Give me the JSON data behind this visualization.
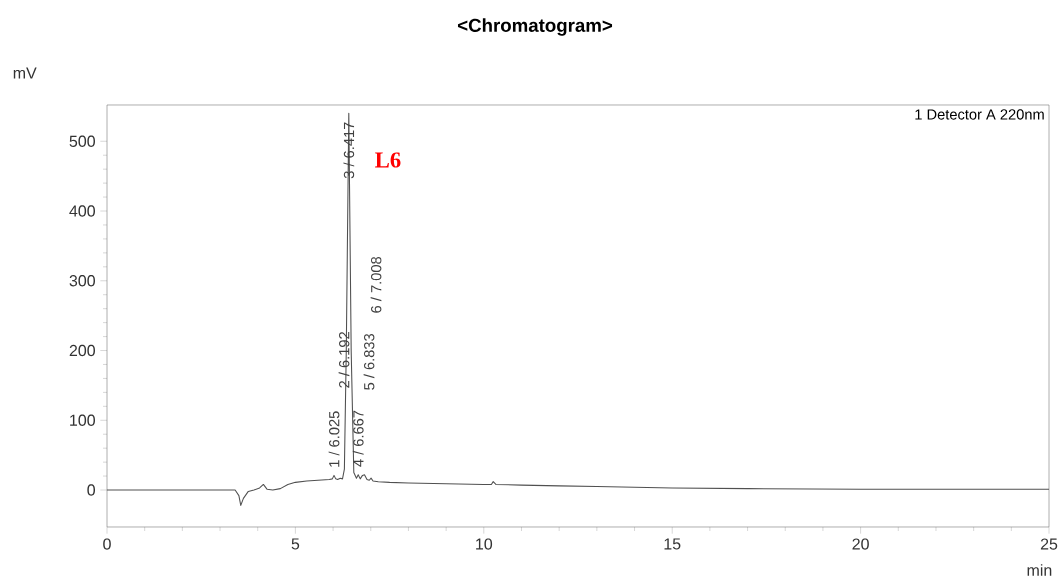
{
  "chart_data": {
    "type": "line",
    "title": "<Chromatogram>",
    "xlabel": "min",
    "ylabel": "mV",
    "x": [
      0,
      1,
      2,
      3,
      3.4,
      3.5,
      3.55,
      3.62,
      3.75,
      3.9,
      4.05,
      4.15,
      4.25,
      4.4,
      4.6,
      4.8,
      5.0,
      5.3,
      5.6,
      5.9,
      5.98,
      6.025,
      6.07,
      6.12,
      6.192,
      6.25,
      6.3,
      6.35,
      6.417,
      6.48,
      6.55,
      6.62,
      6.667,
      6.72,
      6.78,
      6.833,
      6.9,
      6.96,
      7.008,
      7.06,
      7.2,
      7.5,
      8,
      9,
      10,
      10.2,
      10.25,
      10.32,
      11,
      12,
      13,
      14,
      15,
      17,
      20,
      23,
      25
    ],
    "series": [
      {
        "name": "1 Detector A 220nm",
        "color": "#505050",
        "values": [
          0,
          0,
          0,
          0,
          0,
          -8,
          -22,
          -12,
          -2,
          0,
          3,
          8,
          1,
          0,
          2,
          8,
          11,
          13,
          14,
          15,
          16,
          21,
          16,
          15,
          17,
          16,
          30,
          200,
          540,
          200,
          25,
          17,
          22,
          16,
          21,
          22,
          15,
          14,
          17,
          13,
          12,
          11,
          10,
          9,
          8,
          8,
          12,
          8,
          7,
          6,
          5,
          4,
          3,
          2,
          1,
          1,
          1
        ]
      }
    ],
    "xlim": [
      0,
      25
    ],
    "ylim": [
      -53,
      552
    ],
    "xticks": [
      0,
      5,
      10,
      15,
      20,
      25
    ],
    "yticks": [
      0,
      100,
      200,
      300,
      400,
      500
    ],
    "legend": "top right",
    "grid": false,
    "annotations": [
      {
        "text": "1 / 6.025",
        "x": 6.025,
        "y": 21
      },
      "2 / 6.192",
      {
        "text": "3 / 6.417",
        "x": 6.417,
        "y": 540
      },
      {
        "text": "4 / 6.667",
        "x": 6.667,
        "y": 22
      },
      "5 / 6.833",
      "6 / 7.008",
      "L6"
    ]
  }
}
